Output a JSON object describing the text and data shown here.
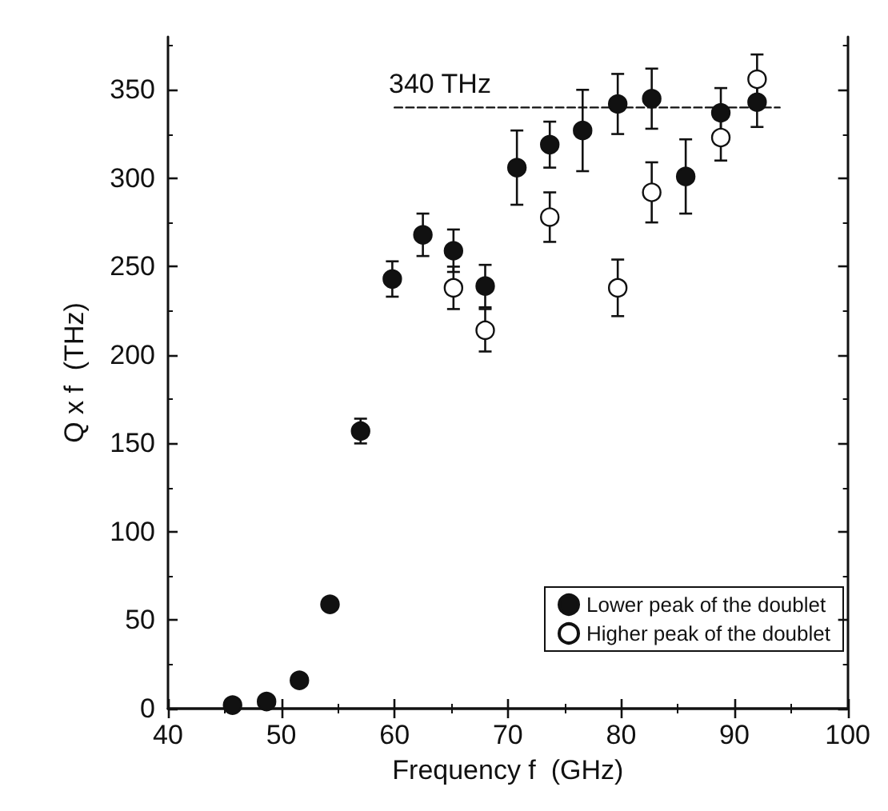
{
  "chart_data": {
    "type": "scatter",
    "xlabel": "Frequency f  (GHz)",
    "ylabel": "Q x f  (THz)",
    "xlim": [
      40,
      100
    ],
    "xticks": [
      40,
      50,
      60,
      70,
      80,
      90,
      100
    ],
    "ylim": [
      0,
      380
    ],
    "yticks": [
      0,
      50,
      100,
      150,
      200,
      250,
      300,
      350
    ],
    "grid": false,
    "legend": "bottom right",
    "marker": "circle",
    "annotations": [
      "340 THz"
    ],
    "series": [
      {
        "name": "Lower peak of the doublet",
        "color": "#111111",
        "x": [
          45.7,
          48.7,
          51.6,
          54.3,
          57.0,
          59.8,
          62.5,
          65.2,
          68.0,
          70.8,
          73.7,
          76.6,
          79.7,
          82.7,
          85.7,
          88.8,
          92.0
        ],
        "values": [
          2,
          4,
          16,
          59,
          157,
          243,
          268,
          259,
          239,
          306,
          319,
          327,
          342,
          345,
          301,
          337,
          343
        ],
        "errors": [
          null,
          null,
          null,
          3,
          7,
          10,
          12,
          12,
          12,
          21,
          13,
          23,
          17,
          17,
          21,
          14,
          14
        ]
      },
      {
        "name": "Higher peak of the doublet",
        "color": "#ffffff",
        "x": [
          65.2,
          68.0,
          73.7,
          79.7,
          82.7,
          88.8,
          92.0
        ],
        "values": [
          238,
          214,
          278,
          238,
          292,
          323,
          356
        ],
        "errors": [
          12,
          12,
          14,
          16,
          17,
          13,
          14
        ]
      },
      {
        "type": "line",
        "color": "#111111",
        "line_style": "dashed",
        "marker": "none",
        "x": [
          60,
          94
        ],
        "values": [
          340,
          340
        ]
      }
    ]
  }
}
